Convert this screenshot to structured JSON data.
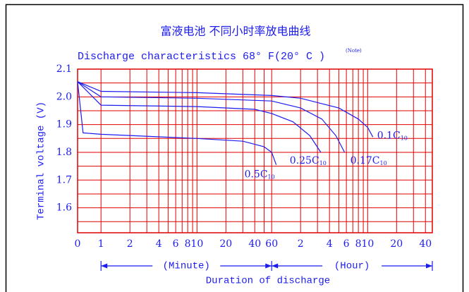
{
  "chart_data": {
    "type": "line",
    "title": "富液电池 不同小时率放电曲线",
    "subtitle": "Discharge characteristics 68° F(20° C )",
    "note": "(Note)",
    "ylabel": "Terminal voltage (V)",
    "xlabel": "Duration of discharge",
    "x_origin_label": "0",
    "x_range_labels": [
      "(Minute)",
      "(Hour)"
    ],
    "xscale": "log",
    "xlim": [
      0.57,
      2830
    ],
    "ylim": [
      1.51,
      2.1
    ],
    "yticks": [
      1.6,
      1.7,
      1.8,
      1.9,
      {
        "value": 2.0,
        "label": "2.0"
      },
      2.1
    ],
    "yminor": [
      1.55,
      1.65,
      1.75,
      1.85,
      1.95,
      2.05
    ],
    "xticks": [
      1,
      2,
      4,
      6,
      8,
      10,
      20,
      40,
      60,
      {
        "value": 120,
        "label": "2"
      },
      {
        "value": 240,
        "label": "4"
      },
      {
        "value": 360,
        "label": "6"
      },
      {
        "value": 480,
        "label": "8"
      },
      {
        "value": 600,
        "label": "10"
      },
      {
        "value": 1200,
        "label": "20"
      },
      {
        "value": 2400,
        "label": "40"
      }
    ],
    "xgrid": [
      1,
      2,
      3,
      4,
      5,
      6,
      7,
      8,
      9,
      10,
      20,
      30,
      40,
      50,
      60,
      120,
      180,
      240,
      300,
      360,
      420,
      480,
      540,
      600,
      1200,
      1800,
      2400
    ],
    "grid_color": "#e00000",
    "text_color": "#1c1cf0",
    "series": [
      {
        "name": "0.1C",
        "name_sub": "10",
        "color": "#1c1cf0",
        "x": [
          0.57,
          1,
          10,
          60,
          120,
          300,
          480,
          600,
          680
        ],
        "values": [
          2.055,
          2.02,
          2.015,
          2.005,
          1.995,
          1.96,
          1.92,
          1.89,
          1.855
        ]
      },
      {
        "name": "0.17C",
        "name_sub": "10",
        "color": "#1c1cf0",
        "x": [
          0.57,
          1,
          10,
          60,
          120,
          200,
          280,
          345
        ],
        "values": [
          2.055,
          2.0,
          1.995,
          1.985,
          1.96,
          1.92,
          1.86,
          1.8
        ]
      },
      {
        "name": "0.25C",
        "name_sub": "10",
        "color": "#1c1cf0",
        "x": [
          0.57,
          1,
          10,
          40,
          60,
          100,
          150,
          195
        ],
        "values": [
          2.055,
          1.97,
          1.965,
          1.955,
          1.94,
          1.91,
          1.86,
          1.8
        ]
      },
      {
        "name": "0.5C",
        "name_sub": "10",
        "color": "#1c1cf0",
        "x": [
          0.57,
          0.65,
          1,
          10,
          30,
          50,
          60,
          67
        ],
        "values": [
          2.055,
          1.87,
          1.865,
          1.85,
          1.84,
          1.82,
          1.8,
          1.755
        ]
      }
    ]
  }
}
